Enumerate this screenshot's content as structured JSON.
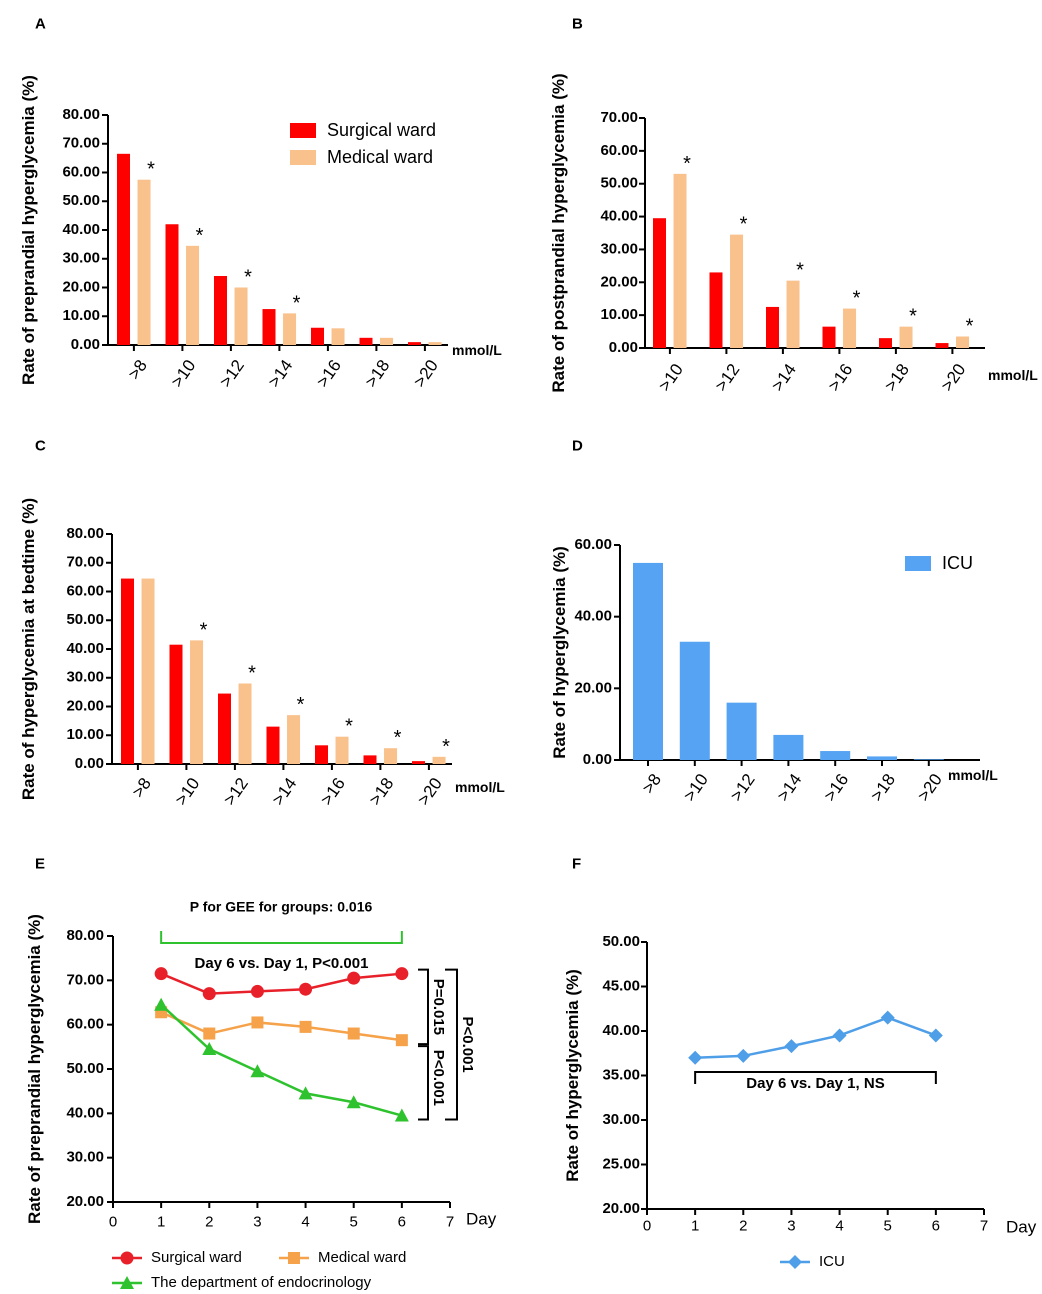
{
  "colors": {
    "surgical": "#ff0000",
    "medical": "#f9c18c",
    "icu_bar": "#55a3f2",
    "line_surgical": "#e8202a",
    "line_medical": "#f5a24a",
    "line_endo": "#2ec22e",
    "line_icu": "#4f9ee8"
  },
  "chart_data": [
    {
      "id": "A",
      "panel_label": "A",
      "type": "bar",
      "ylabel": "Rate of preprandial hyperglycemia (%)",
      "unit_label": "mmol/L",
      "ylim": [
        0,
        80
      ],
      "yticks": [
        "0.00",
        "10.00",
        "20.00",
        "30.00",
        "40.00",
        "50.00",
        "60.00",
        "70.00",
        "80.00"
      ],
      "categories": [
        ">8",
        ">10",
        ">12",
        ">14",
        ">16",
        ">18",
        ">20"
      ],
      "series": [
        {
          "name": "Surgical ward",
          "values": [
            66.5,
            42.0,
            24.0,
            12.5,
            6.0,
            2.5,
            1.0
          ]
        },
        {
          "name": "Medical ward",
          "values": [
            57.5,
            34.5,
            20.0,
            11.0,
            5.8,
            2.5,
            1.0
          ]
        }
      ],
      "significance": [
        "*",
        "*",
        "*",
        "*",
        "",
        "",
        ""
      ],
      "legend": [
        "Surgical ward",
        "Medical ward"
      ]
    },
    {
      "id": "B",
      "panel_label": "B",
      "type": "bar",
      "ylabel": "Rate of postprandial hyperglycemia (%)",
      "unit_label": "mmol/L",
      "ylim": [
        0,
        70
      ],
      "yticks": [
        "0.00",
        "10.00",
        "20.00",
        "30.00",
        "40.00",
        "50.00",
        "60.00",
        "70.00"
      ],
      "categories": [
        ">10",
        ">12",
        ">14",
        ">16",
        ">18",
        ">20"
      ],
      "series": [
        {
          "name": "Surgical ward",
          "values": [
            39.5,
            23.0,
            12.5,
            6.5,
            3.0,
            1.5
          ]
        },
        {
          "name": "Medical ward",
          "values": [
            53.0,
            34.5,
            20.5,
            12.0,
            6.5,
            3.5
          ]
        }
      ],
      "significance": [
        "*",
        "*",
        "*",
        "*",
        "*",
        "*"
      ]
    },
    {
      "id": "C",
      "panel_label": "C",
      "type": "bar",
      "ylabel": "Rate of  hyperglycemia at bedtime (%)",
      "unit_label": "mmol/L",
      "ylim": [
        0,
        80
      ],
      "yticks": [
        "0.00",
        "10.00",
        "20.00",
        "30.00",
        "40.00",
        "50.00",
        "60.00",
        "70.00",
        "80.00"
      ],
      "categories": [
        ">8",
        ">10",
        ">12",
        ">14",
        ">16",
        ">18",
        ">20"
      ],
      "series": [
        {
          "name": "Surgical ward",
          "values": [
            64.5,
            41.5,
            24.5,
            13.0,
            6.5,
            3.0,
            1.0
          ]
        },
        {
          "name": "Medical ward",
          "values": [
            64.5,
            43.0,
            28.0,
            17.0,
            9.5,
            5.5,
            2.5
          ]
        }
      ],
      "significance": [
        "",
        "*",
        "*",
        "*",
        "*",
        "*",
        "*"
      ]
    },
    {
      "id": "D",
      "panel_label": "D",
      "type": "bar",
      "ylabel": "Rate of hyperglycemia (%)",
      "unit_label": "mmol/L",
      "ylim": [
        0,
        60
      ],
      "yticks": [
        "0.00",
        "20.00",
        "40.00",
        "60.00"
      ],
      "categories": [
        ">8",
        ">10",
        ">12",
        ">14",
        ">16",
        ">18",
        ">20"
      ],
      "series": [
        {
          "name": "ICU",
          "values": [
            55.0,
            33.0,
            16.0,
            7.0,
            2.5,
            1.0,
            0.2
          ]
        }
      ],
      "legend": [
        "ICU"
      ]
    },
    {
      "id": "E",
      "panel_label": "E",
      "type": "line",
      "title": "P for GEE for groups: 0.016",
      "ylabel": "Rate of preprandial hyperglycemia (%)",
      "xlabel": "Day",
      "xlim": [
        0,
        7
      ],
      "ylim": [
        20,
        80
      ],
      "xticks": [
        "0",
        "1",
        "2",
        "3",
        "4",
        "5",
        "6",
        "7"
      ],
      "yticks": [
        "20.00",
        "30.00",
        "40.00",
        "50.00",
        "60.00",
        "70.00",
        "80.00"
      ],
      "x": [
        1,
        2,
        3,
        4,
        5,
        6
      ],
      "series": [
        {
          "name": "Surgical ward",
          "values": [
            71.5,
            67.0,
            67.5,
            68.0,
            70.5,
            71.5
          ]
        },
        {
          "name": "Medical ward",
          "values": [
            62.8,
            58.0,
            60.5,
            59.5,
            58.0,
            56.5
          ]
        },
        {
          "name": "The department of endocrinology",
          "values": [
            64.5,
            54.5,
            49.5,
            44.5,
            42.5,
            39.5
          ]
        }
      ],
      "annotations": {
        "bottom_bracket": "Day 6 vs. Day 1, P<0.001",
        "bracket_surg_med": "P=0.015",
        "bracket_med_endo": "P<0.001",
        "bracket_surg_endo": "P<0.001"
      },
      "legend": [
        "Surgical ward",
        "Medical ward",
        "The department of endocrinology"
      ]
    },
    {
      "id": "F",
      "panel_label": "F",
      "type": "line",
      "ylabel": "Rate of  hyperglycemia (%)",
      "xlabel": "Day",
      "xlim": [
        0,
        7
      ],
      "ylim": [
        20,
        50
      ],
      "xticks": [
        "0",
        "1",
        "2",
        "3",
        "4",
        "5",
        "6",
        "7"
      ],
      "yticks": [
        "20.00",
        "25.00",
        "30.00",
        "35.00",
        "40.00",
        "45.00",
        "50.00"
      ],
      "x": [
        1,
        2,
        3,
        4,
        5,
        6
      ],
      "series": [
        {
          "name": "ICU",
          "values": [
            37.0,
            37.2,
            38.3,
            39.5,
            41.5,
            39.5
          ]
        }
      ],
      "annotations": {
        "bottom_bracket": "Day 6 vs. Day 1, NS"
      },
      "legend": [
        "ICU"
      ]
    }
  ]
}
